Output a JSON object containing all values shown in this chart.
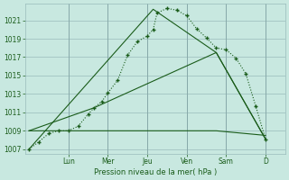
{
  "background_color": "#c8e8e0",
  "plot_bg_color": "#c8e8e0",
  "grid_color": "#99bbbb",
  "line_color": "#1a5c1a",
  "xlabel": "Pression niveau de la mer( hPa )",
  "ylim": [
    1006.5,
    1022.8
  ],
  "xlim": [
    -0.2,
    13.0
  ],
  "yticks": [
    1007,
    1009,
    1011,
    1013,
    1015,
    1017,
    1019,
    1021
  ],
  "day_labels": [
    "Lun",
    "Mer",
    "Jeu",
    "Ven",
    "Sam",
    "D"
  ],
  "day_positions": [
    2,
    4,
    6,
    8,
    10,
    12
  ],
  "series1_x": [
    0,
    0.5,
    1,
    1.5,
    2,
    2.5,
    3,
    3.3,
    3.7,
    4,
    4.5,
    5,
    5.5,
    6,
    6.3,
    6.5,
    7,
    7.5,
    8,
    8.5,
    9,
    9.5,
    10,
    10.5,
    11,
    11.5,
    12
  ],
  "series1_y": [
    1007.0,
    1007.8,
    1008.7,
    1009.0,
    1009.0,
    1009.5,
    1010.8,
    1011.5,
    1012.2,
    1013.1,
    1014.5,
    1017.2,
    1018.7,
    1019.3,
    1020.0,
    1021.8,
    1022.3,
    1022.1,
    1021.5,
    1020.1,
    1019.1,
    1018.0,
    1017.8,
    1016.9,
    1015.2,
    1011.7,
    1008.1
  ],
  "series2_x": [
    0,
    6.3,
    9.5,
    12
  ],
  "series2_y": [
    1007.0,
    1022.2,
    1017.5,
    1008.1
  ],
  "series3_x": [
    0,
    3.3,
    9.5,
    12
  ],
  "series3_y": [
    1009.0,
    1011.5,
    1017.5,
    1008.1
  ],
  "series4_x": [
    0,
    9.5,
    12
  ],
  "series4_y": [
    1009.0,
    1009.0,
    1008.5
  ]
}
